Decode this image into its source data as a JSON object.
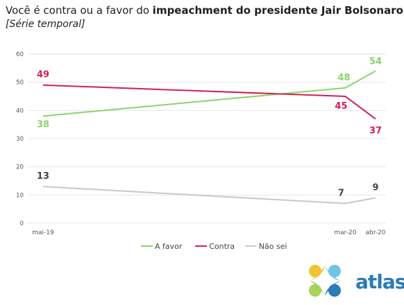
{
  "title": {
    "prefix": "Você é contra ou a favor do ",
    "emphasis": "impeachment do presidente Jair Bolsonaro",
    "suffix": "?"
  },
  "subtitle": "[Série temporal]",
  "brand": {
    "name": "atlas",
    "color": "#2a7bb7"
  },
  "chart_data": {
    "type": "line",
    "categories": [
      "mai-19",
      "mar-20",
      "abr-20"
    ],
    "x_positions": [
      0,
      10,
      11
    ],
    "ylim": [
      0,
      60
    ],
    "yticks": [
      0,
      10,
      20,
      30,
      40,
      50,
      60
    ],
    "grid": true,
    "legend_position": "bottom",
    "xlabel": "",
    "ylabel": "",
    "series": [
      {
        "name": "A favor",
        "values": [
          38,
          48,
          54
        ],
        "labels": [
          "38",
          "48",
          "54"
        ],
        "color": "#8cd26b"
      },
      {
        "name": "Contra",
        "values": [
          49,
          45,
          37
        ],
        "labels": [
          "49",
          "45",
          "37"
        ],
        "color": "#d4204f"
      },
      {
        "name": "Não sei",
        "values": [
          13,
          7,
          9
        ],
        "labels": [
          "13",
          "7",
          "9"
        ],
        "color": "#c8c8c8"
      }
    ]
  }
}
